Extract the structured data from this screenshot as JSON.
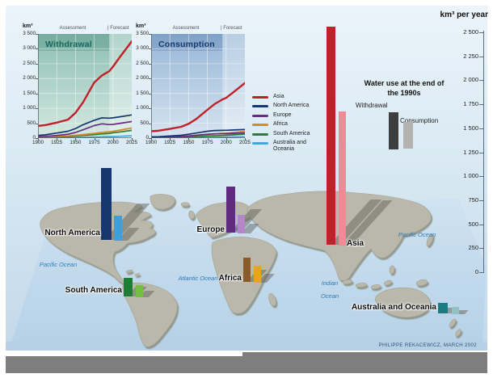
{
  "figure": {
    "credit": "PHILIPPE REKACEWICZ, MARCH 2002"
  },
  "right_axis": {
    "title": "km³ per year",
    "tick_values": [
      2500,
      2250,
      2000,
      1750,
      1500,
      1250,
      1000,
      750,
      500,
      250,
      0
    ],
    "tick_labels": [
      "2 500",
      "2 250",
      "2 000",
      "1 750",
      "1 500",
      "1 250",
      "1 000",
      "750",
      "500",
      "250",
      "0"
    ]
  },
  "water_use_legend": {
    "title": "Water use at the end of the 1990s",
    "items": [
      {
        "label": "Withdrawal",
        "color": "#3d3d3d"
      },
      {
        "label": "Consumption",
        "color": "#b3b2ae"
      }
    ]
  },
  "map": {
    "ocean_labels": [
      "Pacific Ocean",
      "Atlantic Ocean",
      "Indian Ocean",
      "Pacific Ocean"
    ],
    "land_color": "#b9b8ab",
    "ocean_color": "#c9deee"
  },
  "chart_data": [
    {
      "type": "line",
      "title": "Withdrawal",
      "ylabel": "km³",
      "ylim": [
        0,
        3500
      ],
      "x": [
        1900,
        1910,
        1925,
        1940,
        1950,
        1960,
        1975,
        1985,
        1995,
        2000,
        2010,
        2025
      ],
      "x_ticks": {
        "values": [
          1900,
          1925,
          1950,
          1975,
          2000,
          2025
        ],
        "labels": [
          "1900",
          "1925",
          "1950",
          "1975",
          "2000",
          "2025"
        ]
      },
      "y_ticks": {
        "values": [
          3500,
          3000,
          2500,
          2000,
          1500,
          1000,
          500,
          0
        ],
        "labels": [
          "3 500",
          "3 000",
          "2 500",
          "2 000",
          "1 500",
          "1 000",
          "500",
          "0"
        ]
      },
      "periods": {
        "assessment": "Assessment",
        "forecast": "| Forecast",
        "divider_year": 1995
      },
      "series": [
        {
          "name": "Asia",
          "color": "#c0202a",
          "values": [
            410,
            440,
            520,
            620,
            850,
            1200,
            1870,
            2100,
            2250,
            2400,
            2750,
            3250
          ]
        },
        {
          "name": "North America",
          "color": "#16376e",
          "values": [
            90,
            110,
            170,
            230,
            320,
            450,
            600,
            680,
            670,
            680,
            720,
            780
          ]
        },
        {
          "name": "Europe",
          "color": "#6a2b82",
          "values": [
            45,
            60,
            90,
            130,
            190,
            280,
            420,
            480,
            455,
            460,
            500,
            555
          ]
        },
        {
          "name": "Africa",
          "color": "#d6882b",
          "values": [
            40,
            45,
            60,
            75,
            95,
            120,
            160,
            190,
            215,
            230,
            270,
            340
          ]
        },
        {
          "name": "South America",
          "color": "#2e7d36",
          "values": [
            25,
            30,
            40,
            55,
            70,
            90,
            120,
            140,
            160,
            180,
            210,
            260
          ]
        },
        {
          "name": "Australia and Oceania",
          "color": "#41a8d8",
          "values": [
            10,
            12,
            15,
            18,
            25,
            30,
            40,
            46,
            52,
            55,
            63,
            78
          ]
        }
      ]
    },
    {
      "type": "line",
      "title": "Consumption",
      "ylabel": "km³",
      "ylim": [
        0,
        3500
      ],
      "x": [
        1900,
        1910,
        1925,
        1940,
        1950,
        1960,
        1975,
        1985,
        1995,
        2000,
        2010,
        2025
      ],
      "x_ticks": {
        "values": [
          1900,
          1925,
          1950,
          1975,
          2000,
          2025
        ],
        "labels": [
          "1900",
          "1925",
          "1950",
          "1975",
          "2000",
          "2025"
        ]
      },
      "y_ticks": {
        "values": [
          3500,
          3000,
          2500,
          2000,
          1500,
          1000,
          500,
          0
        ],
        "labels": [
          "3 500",
          "3 000",
          "2 500",
          "2 000",
          "1 500",
          "1 000",
          "500",
          "0"
        ]
      },
      "periods": {
        "assessment": "Assessment",
        "forecast": "| Forecast",
        "divider_year": 1995
      },
      "series": [
        {
          "name": "Asia",
          "color": "#c0202a",
          "values": [
            230,
            250,
            310,
            380,
            480,
            640,
            950,
            1150,
            1300,
            1350,
            1550,
            1850
          ]
        },
        {
          "name": "North America",
          "color": "#16376e",
          "values": [
            40,
            50,
            70,
            95,
            130,
            170,
            230,
            255,
            260,
            262,
            275,
            290
          ]
        },
        {
          "name": "Europe",
          "color": "#6a2b82",
          "values": [
            20,
            25,
            35,
            50,
            70,
            95,
            130,
            145,
            148,
            150,
            160,
            175
          ]
        },
        {
          "name": "Africa",
          "color": "#d6882b",
          "values": [
            30,
            34,
            45,
            55,
            70,
            90,
            120,
            140,
            160,
            168,
            190,
            230
          ]
        },
        {
          "name": "South America",
          "color": "#2e7d36",
          "values": [
            15,
            18,
            25,
            32,
            40,
            52,
            70,
            80,
            90,
            95,
            110,
            130
          ]
        },
        {
          "name": "Australia and Oceania",
          "color": "#41a8d8",
          "values": [
            5,
            6,
            8,
            10,
            15,
            18,
            25,
            28,
            32,
            34,
            40,
            50
          ]
        }
      ]
    },
    {
      "type": "bar",
      "title": "Water use at the end of the 1990s",
      "unit": "km³ per year",
      "ylim": [
        0,
        2500
      ],
      "categories": [
        "North America",
        "Europe",
        "Africa",
        "Asia",
        "South America",
        "Australia and Oceania"
      ],
      "series": [
        {
          "name": "Withdrawal",
          "values": [
            750,
            480,
            250,
            2270,
            195,
            110
          ]
        },
        {
          "name": "Consumption",
          "values": [
            260,
            190,
            175,
            1400,
            125,
            75
          ]
        }
      ],
      "bar_colors": {
        "withdrawal": [
          "#16376e",
          "#5f2a7f",
          "#8a5a28",
          "#c0202a",
          "#1e7d34",
          "#1b7b80"
        ],
        "consumption": [
          "#3f9fd8",
          "#b488c6",
          "#eba31e",
          "#f08a96",
          "#72bf44",
          "#8fc3c6"
        ]
      }
    }
  ]
}
